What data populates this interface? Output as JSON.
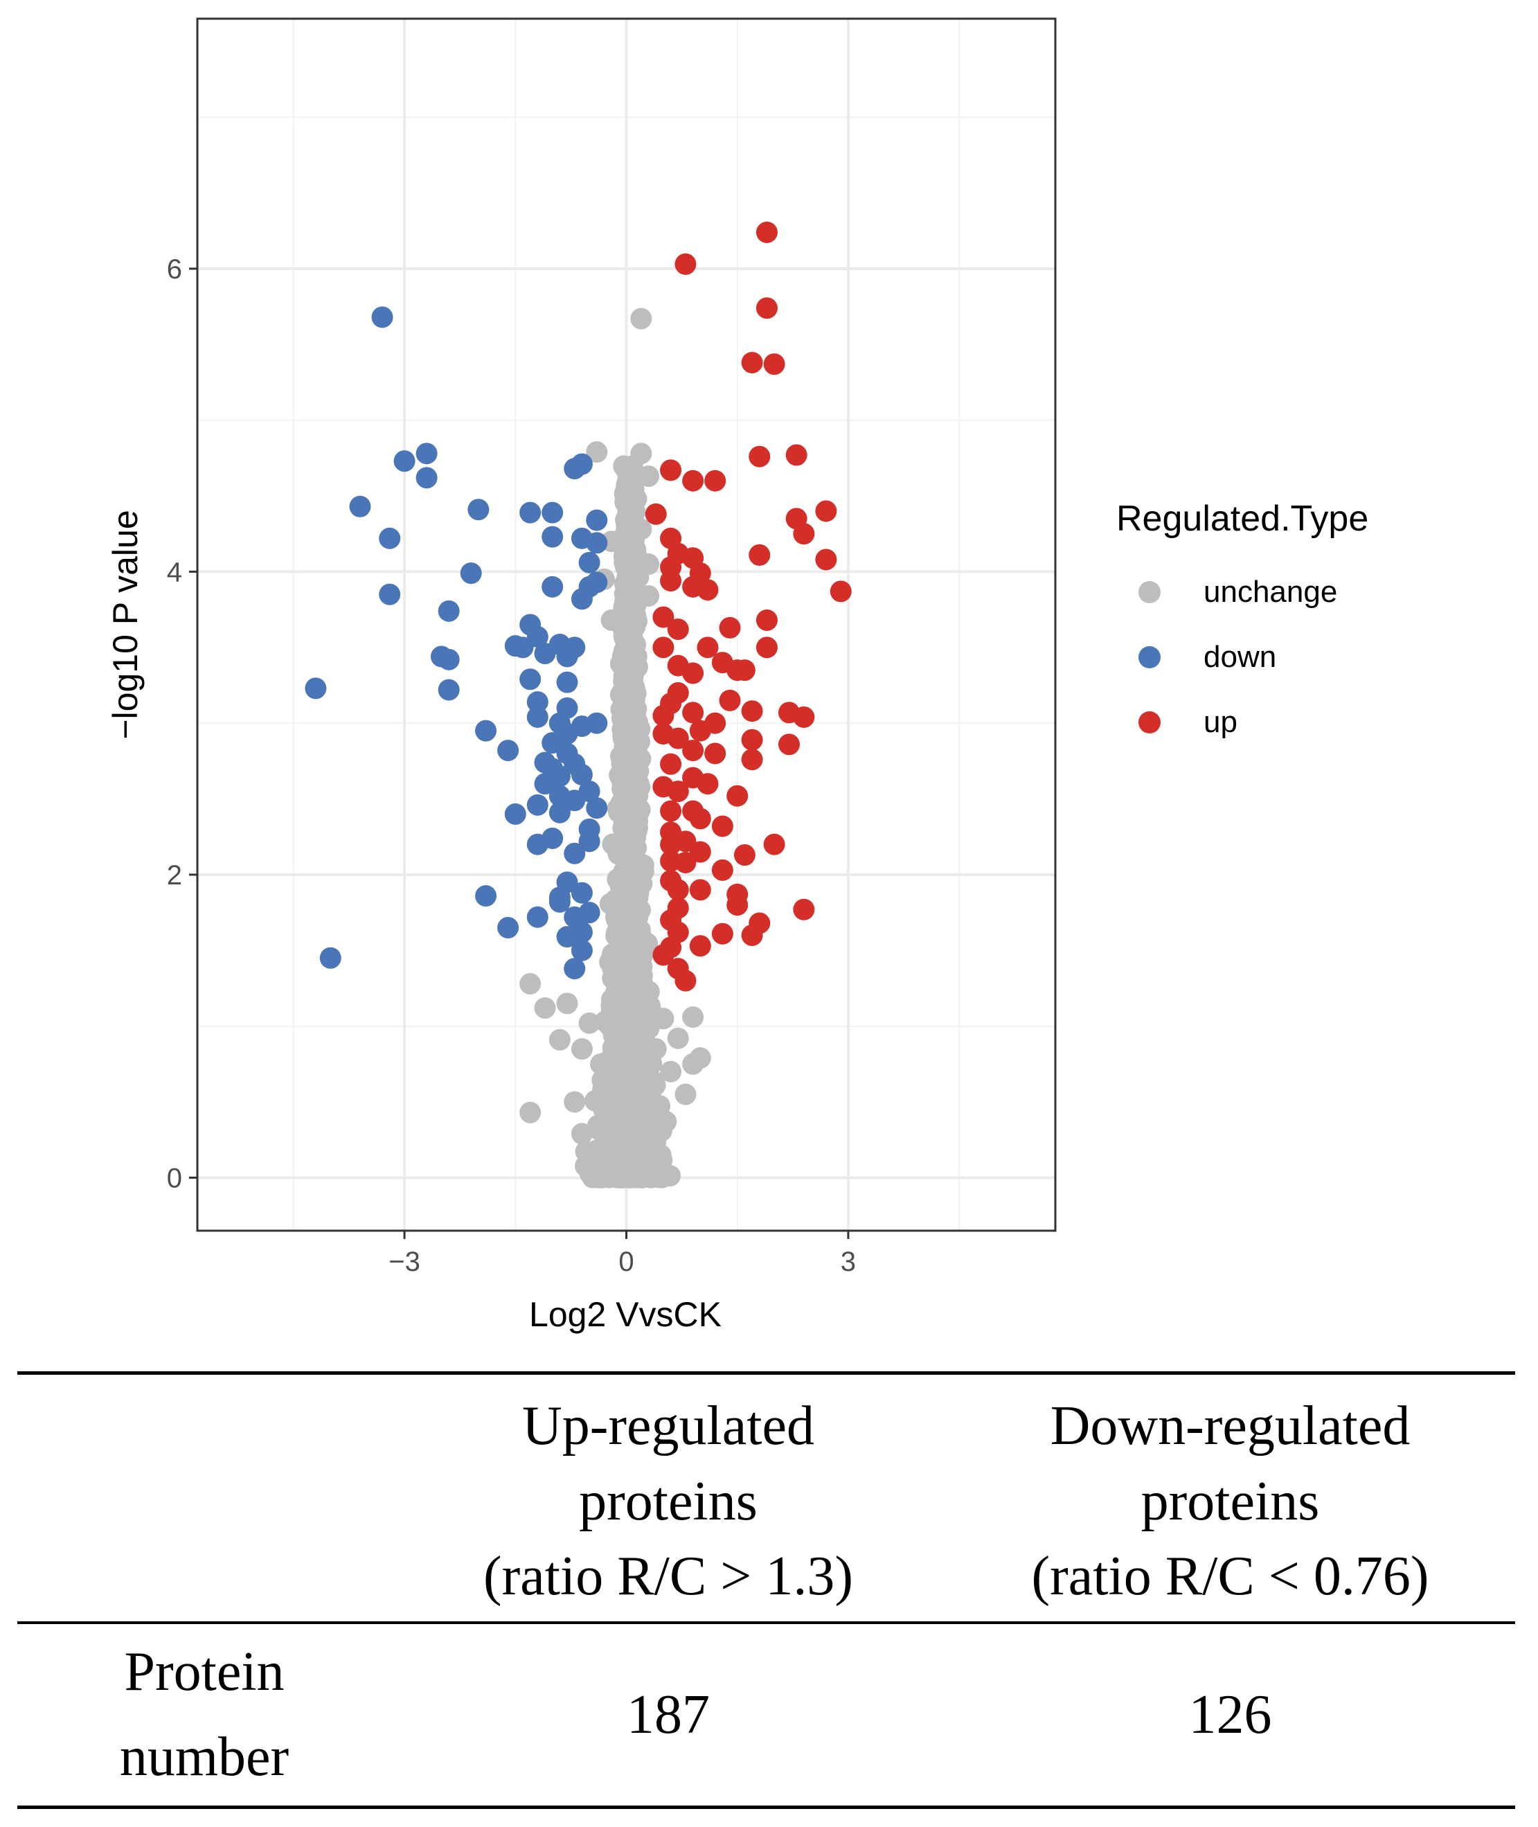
{
  "chart_data": {
    "type": "scatter",
    "title": "",
    "xlabel": "Log2 VvsCK",
    "ylabel": "−log10 P value",
    "xlim": [
      -5.8,
      5.8
    ],
    "ylim": [
      -0.35,
      7.65
    ],
    "xticks": [
      -3,
      0,
      3
    ],
    "xtick_labels": [
      "−3",
      "0",
      "3"
    ],
    "yticks": [
      0,
      2,
      4,
      6
    ],
    "ytick_labels": [
      "0",
      "2",
      "4",
      "6"
    ],
    "grid": true,
    "legend": {
      "title": "Regulated.Type",
      "position": "right",
      "entries": [
        {
          "key": "unchange",
          "label": "unchange",
          "color": "#bdbdbd"
        },
        {
          "key": "down",
          "label": "down",
          "color": "#4a76b8"
        },
        {
          "key": "up",
          "label": "up",
          "color": "#d42e28"
        }
      ]
    },
    "series": [
      {
        "name": "down",
        "color": "#4a76b8",
        "points": [
          [
            -3.3,
            5.68
          ],
          [
            -3.0,
            4.73
          ],
          [
            -2.7,
            4.78
          ],
          [
            -2.7,
            4.62
          ],
          [
            -3.6,
            4.43
          ],
          [
            -3.2,
            4.22
          ],
          [
            -3.2,
            3.85
          ],
          [
            -2.0,
            4.41
          ],
          [
            -2.1,
            3.99
          ],
          [
            -2.4,
            3.74
          ],
          [
            -2.4,
            3.42
          ],
          [
            -2.5,
            3.44
          ],
          [
            -2.4,
            3.22
          ],
          [
            -4.2,
            3.23
          ],
          [
            -1.9,
            2.95
          ],
          [
            -1.6,
            2.82
          ],
          [
            -1.5,
            3.51
          ],
          [
            -1.3,
            3.65
          ],
          [
            -1.2,
            3.57
          ],
          [
            -1.4,
            3.5
          ],
          [
            -1.1,
            3.46
          ],
          [
            -0.9,
            3.52
          ],
          [
            -0.8,
            3.44
          ],
          [
            -1.3,
            3.29
          ],
          [
            -1.2,
            3.14
          ],
          [
            -0.8,
            3.27
          ],
          [
            -1.2,
            3.04
          ],
          [
            -0.9,
            3.0
          ],
          [
            -0.6,
            2.98
          ],
          [
            -1.3,
            4.39
          ],
          [
            -1.0,
            4.23
          ],
          [
            -0.6,
            4.71
          ],
          [
            -0.7,
            4.68
          ],
          [
            -0.4,
            4.34
          ],
          [
            -0.6,
            4.22
          ],
          [
            -0.5,
            4.06
          ],
          [
            -0.4,
            4.19
          ],
          [
            -1.0,
            3.9
          ],
          [
            -0.6,
            3.82
          ],
          [
            -0.5,
            3.9
          ],
          [
            -0.4,
            3.93
          ],
          [
            -1.0,
            4.39
          ],
          [
            -1.0,
            2.87
          ],
          [
            -0.8,
            2.8
          ],
          [
            -1.1,
            2.74
          ],
          [
            -0.9,
            2.65
          ],
          [
            -0.7,
            2.73
          ],
          [
            -1.1,
            2.6
          ],
          [
            -0.9,
            2.52
          ],
          [
            -0.7,
            2.49
          ],
          [
            -1.2,
            2.46
          ],
          [
            -0.9,
            2.41
          ],
          [
            -0.5,
            2.55
          ],
          [
            -0.4,
            2.44
          ],
          [
            -1.2,
            2.2
          ],
          [
            -1.0,
            2.24
          ],
          [
            -0.7,
            2.14
          ],
          [
            -0.5,
            2.22
          ],
          [
            -0.8,
            1.95
          ],
          [
            -0.6,
            1.88
          ],
          [
            -0.9,
            1.82
          ],
          [
            -0.7,
            1.72
          ],
          [
            -0.5,
            1.75
          ],
          [
            -1.2,
            1.72
          ],
          [
            -0.8,
            1.59
          ],
          [
            -0.6,
            1.5
          ],
          [
            -0.7,
            1.38
          ],
          [
            -1.9,
            1.86
          ],
          [
            -1.6,
            1.65
          ],
          [
            -4.0,
            1.45
          ],
          [
            -0.6,
            2.66
          ],
          [
            -0.8,
            2.93
          ],
          [
            -0.4,
            3.0
          ],
          [
            -0.7,
            3.5
          ],
          [
            -1.5,
            2.4
          ],
          [
            -0.5,
            2.3
          ],
          [
            -0.9,
            1.85
          ],
          [
            -0.6,
            1.62
          ],
          [
            -1.0,
            2.7
          ],
          [
            -0.8,
            3.1
          ]
        ]
      },
      {
        "name": "up",
        "color": "#d42e28",
        "points": [
          [
            1.9,
            6.24
          ],
          [
            0.8,
            6.03
          ],
          [
            1.9,
            5.74
          ],
          [
            1.7,
            5.38
          ],
          [
            2.0,
            5.37
          ],
          [
            1.8,
            4.76
          ],
          [
            2.3,
            4.77
          ],
          [
            0.6,
            4.67
          ],
          [
            0.9,
            4.6
          ],
          [
            1.2,
            4.6
          ],
          [
            0.4,
            4.38
          ],
          [
            2.3,
            4.35
          ],
          [
            2.7,
            4.4
          ],
          [
            2.4,
            4.25
          ],
          [
            2.7,
            4.08
          ],
          [
            2.9,
            3.87
          ],
          [
            1.8,
            4.11
          ],
          [
            0.6,
            4.22
          ],
          [
            0.7,
            4.12
          ],
          [
            0.9,
            4.09
          ],
          [
            0.6,
            4.03
          ],
          [
            1.0,
            3.99
          ],
          [
            0.6,
            3.94
          ],
          [
            0.9,
            3.9
          ],
          [
            1.1,
            3.88
          ],
          [
            0.5,
            3.7
          ],
          [
            0.7,
            3.62
          ],
          [
            0.5,
            3.5
          ],
          [
            1.1,
            3.5
          ],
          [
            0.7,
            3.38
          ],
          [
            0.9,
            3.33
          ],
          [
            1.4,
            3.63
          ],
          [
            1.9,
            3.68
          ],
          [
            1.6,
            3.35
          ],
          [
            1.5,
            3.35
          ],
          [
            1.3,
            3.4
          ],
          [
            1.9,
            3.5
          ],
          [
            2.2,
            3.07
          ],
          [
            2.4,
            3.04
          ],
          [
            1.7,
            3.08
          ],
          [
            1.4,
            3.15
          ],
          [
            0.6,
            3.13
          ],
          [
            0.9,
            3.07
          ],
          [
            1.2,
            3.0
          ],
          [
            0.5,
            2.93
          ],
          [
            0.7,
            2.9
          ],
          [
            1.7,
            2.89
          ],
          [
            2.2,
            2.86
          ],
          [
            0.9,
            2.82
          ],
          [
            1.2,
            2.8
          ],
          [
            0.6,
            2.73
          ],
          [
            1.7,
            2.76
          ],
          [
            0.9,
            2.64
          ],
          [
            1.1,
            2.6
          ],
          [
            0.5,
            2.58
          ],
          [
            0.7,
            2.55
          ],
          [
            1.5,
            2.52
          ],
          [
            0.9,
            2.42
          ],
          [
            0.6,
            2.42
          ],
          [
            1.0,
            2.37
          ],
          [
            0.6,
            2.28
          ],
          [
            1.3,
            2.32
          ],
          [
            0.8,
            2.22
          ],
          [
            2.0,
            2.2
          ],
          [
            1.6,
            2.13
          ],
          [
            0.6,
            2.09
          ],
          [
            0.8,
            2.08
          ],
          [
            1.3,
            2.03
          ],
          [
            0.6,
            1.96
          ],
          [
            0.7,
            1.9
          ],
          [
            1.0,
            1.9
          ],
          [
            1.5,
            1.87
          ],
          [
            1.5,
            1.8
          ],
          [
            0.7,
            1.78
          ],
          [
            2.4,
            1.77
          ],
          [
            0.6,
            1.7
          ],
          [
            1.8,
            1.68
          ],
          [
            0.7,
            1.62
          ],
          [
            1.3,
            1.61
          ],
          [
            1.7,
            1.6
          ],
          [
            0.6,
            1.52
          ],
          [
            1.0,
            1.53
          ],
          [
            0.5,
            1.47
          ],
          [
            0.7,
            1.38
          ],
          [
            0.8,
            1.3
          ],
          [
            0.7,
            3.2
          ],
          [
            1.0,
            2.95
          ],
          [
            0.6,
            2.2
          ],
          [
            0.5,
            3.05
          ],
          [
            1.0,
            2.15
          ]
        ]
      }
    ],
    "unchange_summary": "dense cloud of ~2000 unchanged proteins centred at log2 0, spanning roughly -0.9 to 1.0 near p=0 and narrowing with increasing -log10 P up to about 4.8"
  },
  "table": {
    "headers": [
      [
        "",
        "",
        ""
      ],
      [
        "Up-regulated",
        "proteins",
        "(ratio R/C > 1.3)"
      ],
      [
        "Down-regulated",
        "proteins",
        "(ratio R/C < 0.76)"
      ]
    ],
    "row": {
      "label_line1": "Protein",
      "label_line2": "number",
      "up_count": "187",
      "down_count": "126"
    }
  }
}
